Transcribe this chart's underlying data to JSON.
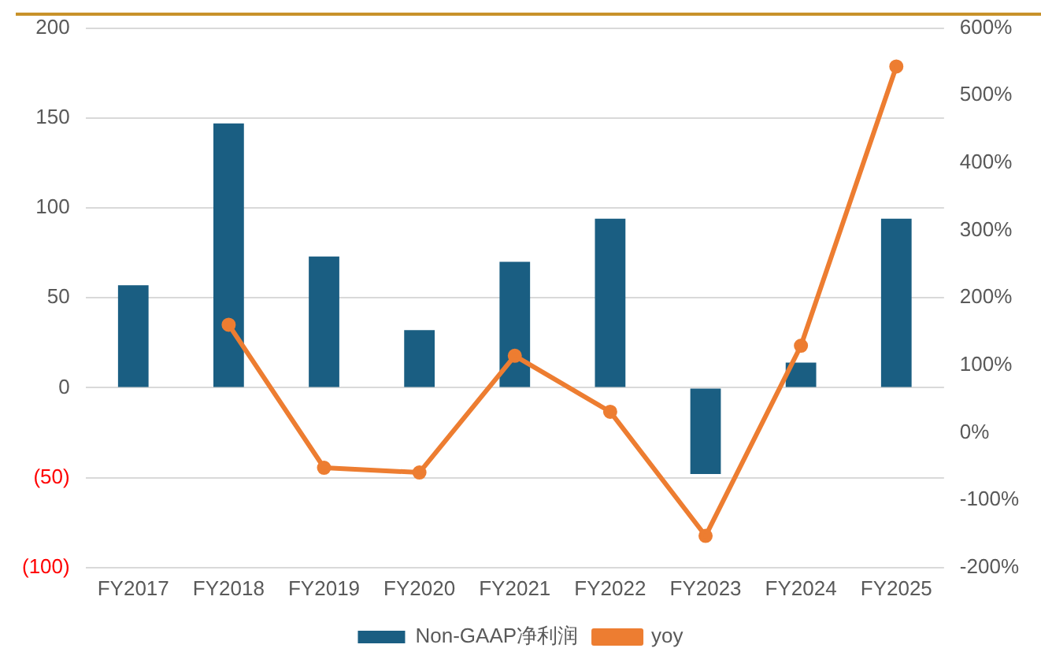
{
  "chart_data": {
    "type": "bar",
    "categories": [
      "FY2017",
      "FY2018",
      "FY2019",
      "FY2020",
      "FY2021",
      "FY2022",
      "FY2023",
      "FY2024",
      "FY2025"
    ],
    "series": [
      {
        "name": "Non-GAAP净利润",
        "color": "#1a5e82",
        "values": [
          57,
          147,
          73,
          32,
          70,
          94,
          -48,
          14,
          94
        ]
      },
      {
        "name": "yoy",
        "type": "line",
        "axis": "y2",
        "color": "#ed7d31",
        "marker": "circle",
        "values": [
          null,
          160,
          -52,
          -59,
          114,
          31,
          -153,
          129,
          543
        ]
      }
    ],
    "ylim": [
      -100,
      200
    ],
    "yticks": [
      {
        "value": -100,
        "label": "(100)"
      },
      {
        "value": -50,
        "label": "(50)"
      },
      0,
      50,
      100,
      150,
      200
    ],
    "y2lim": [
      -200,
      600
    ],
    "y2ticks": [
      {
        "value": -200,
        "label": "-200%"
      },
      {
        "value": -100,
        "label": "-100%"
      },
      {
        "value": 0,
        "label": "0%"
      },
      {
        "value": 100,
        "label": "100%"
      },
      {
        "value": 200,
        "label": "200%"
      },
      {
        "value": 300,
        "label": "300%"
      },
      {
        "value": 400,
        "label": "400%"
      },
      {
        "value": 500,
        "label": "500%"
      },
      {
        "value": 600,
        "label": "600%"
      }
    ],
    "grid": "y",
    "legend": "bottom"
  }
}
